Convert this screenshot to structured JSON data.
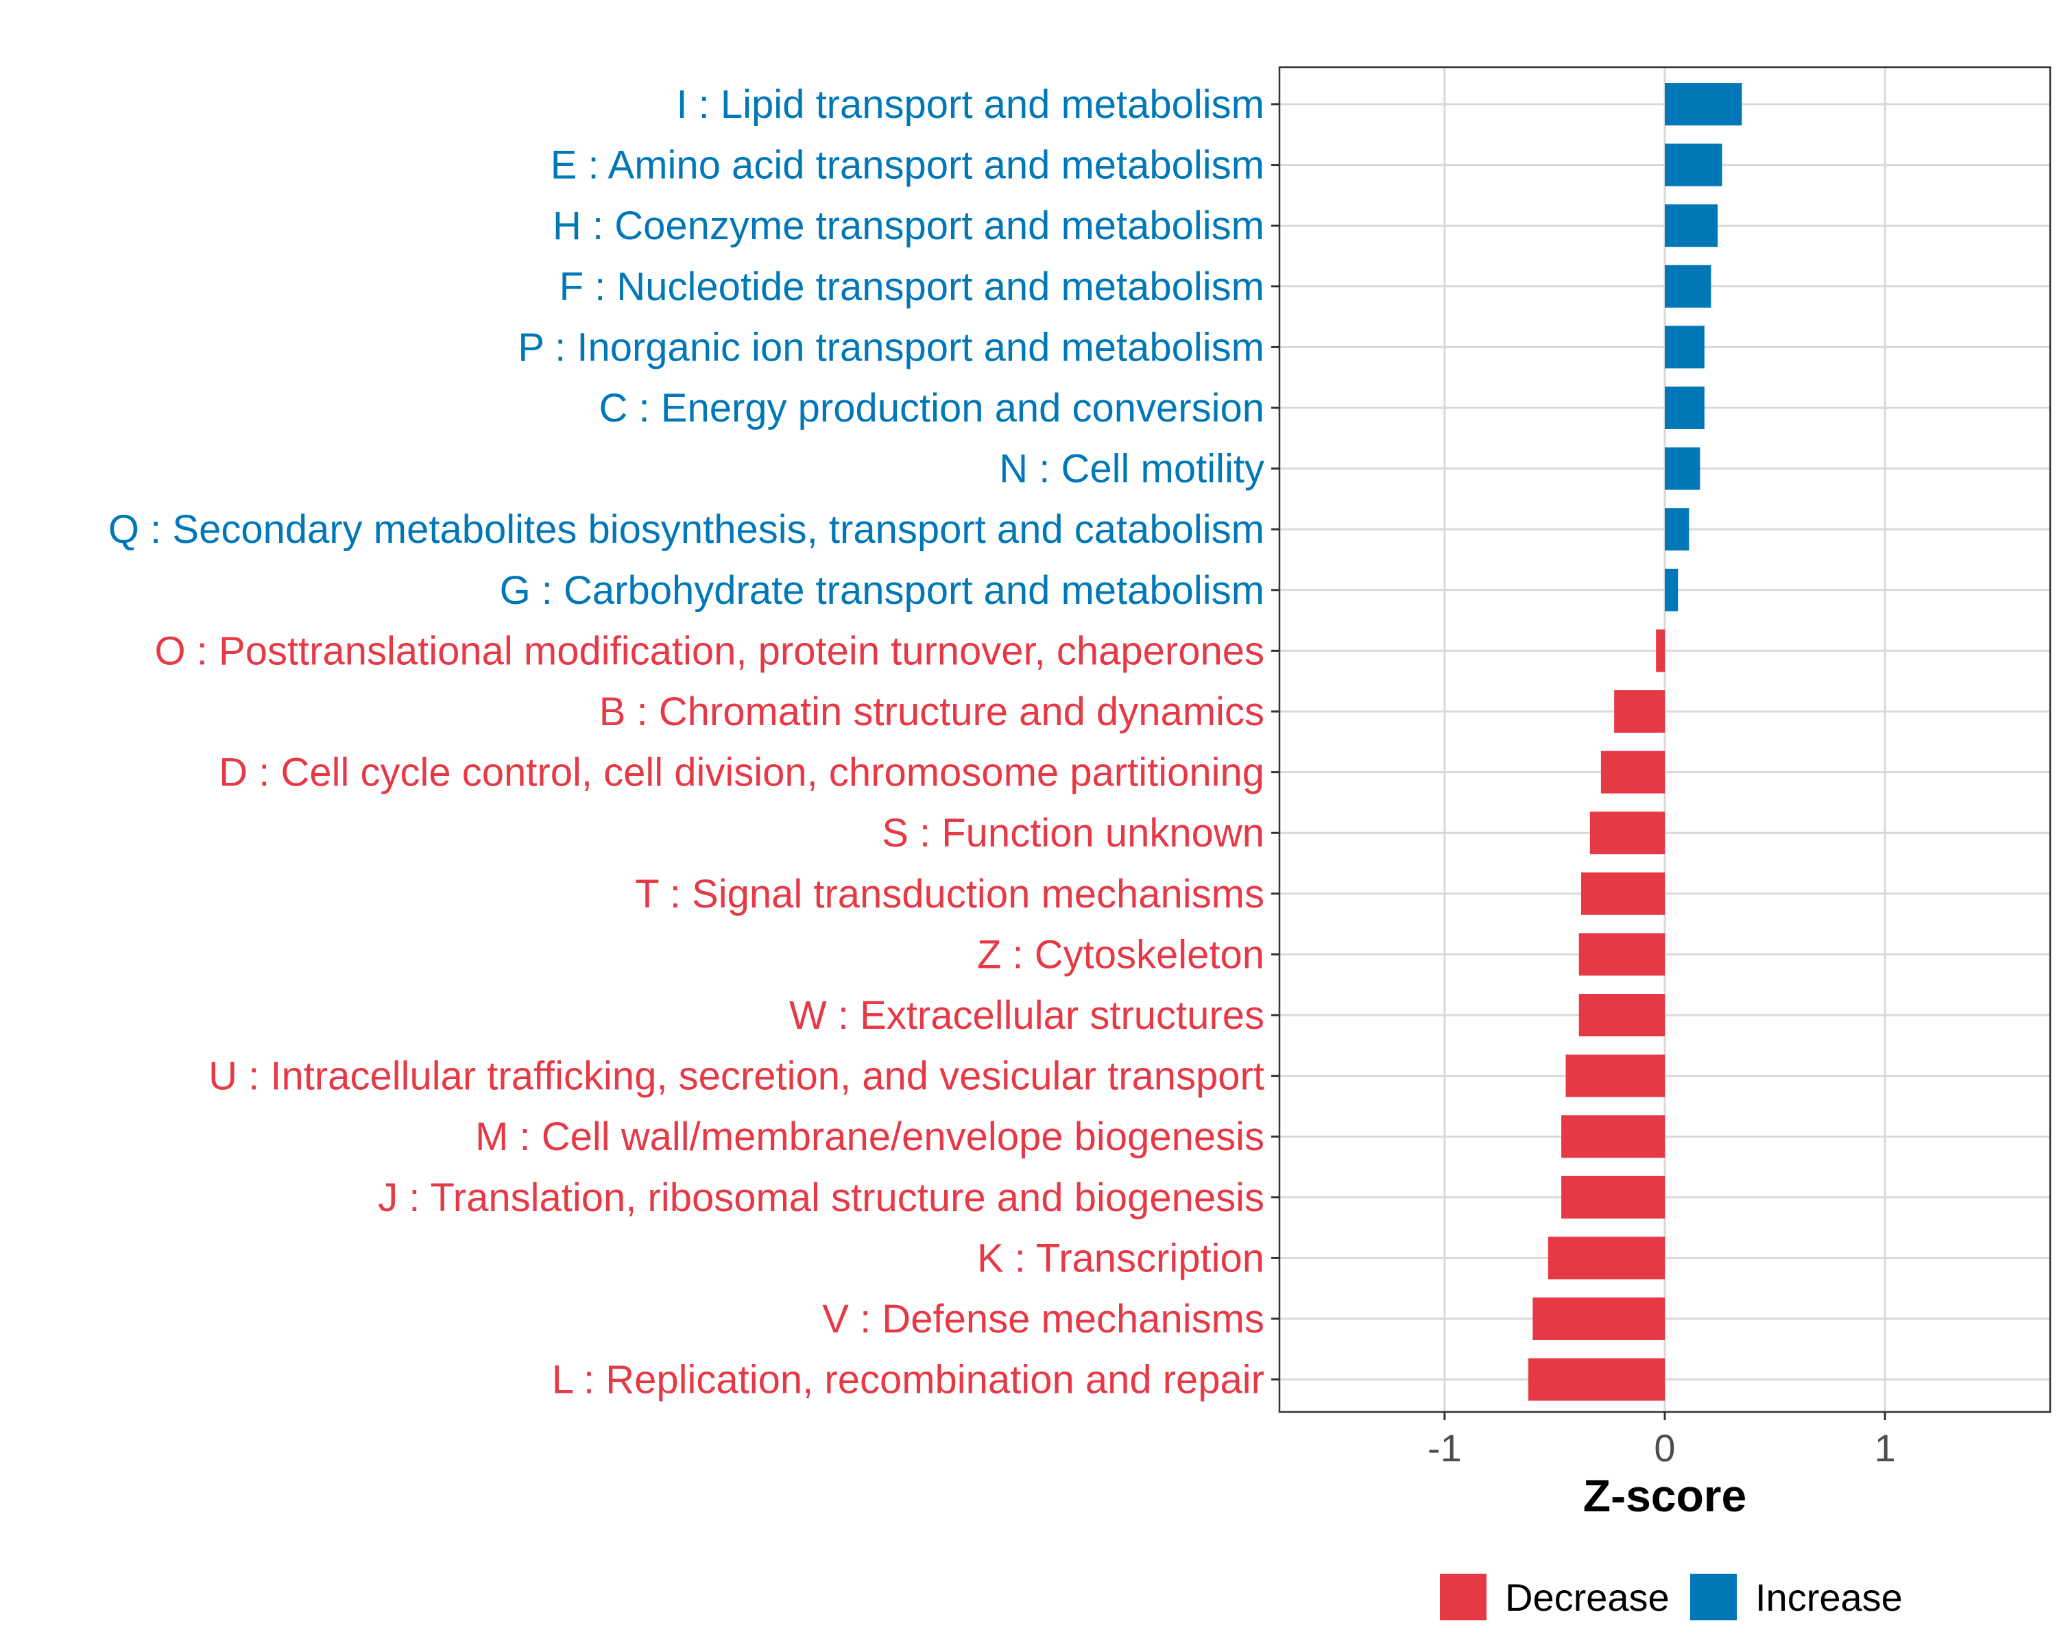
{
  "chart_data": {
    "type": "bar",
    "orientation": "horizontal",
    "xlabel": "Z-score",
    "ylabel": "",
    "xlim": [
      -1.75,
      1.75
    ],
    "xticks": [
      -1,
      0,
      1
    ],
    "xtick_labels": [
      "-1",
      "0",
      "1"
    ],
    "grid": true,
    "legend_position": "bottom",
    "legend": [
      {
        "name": "Decrease",
        "color": "#E63946"
      },
      {
        "name": "Increase",
        "color": "#0077B6"
      }
    ],
    "categories": [
      "I : Lipid transport and metabolism",
      "E : Amino acid transport and metabolism",
      "H : Coenzyme transport and metabolism",
      "F : Nucleotide transport and metabolism",
      "P : Inorganic ion transport and metabolism",
      "C : Energy production and conversion",
      "N : Cell motility",
      "Q : Secondary metabolites biosynthesis, transport and catabolism",
      "G : Carbohydrate transport and metabolism",
      "O : Posttranslational modification, protein turnover, chaperones",
      "B : Chromatin structure and dynamics",
      "D : Cell cycle control, cell division, chromosome partitioning",
      "S : Function unknown",
      "T : Signal transduction mechanisms",
      "Z : Cytoskeleton",
      "W : Extracellular structures",
      "U : Intracellular trafficking, secretion, and vesicular transport",
      "M : Cell wall/membrane/envelope biogenesis",
      "J : Translation, ribosomal structure and biogenesis",
      "K : Transcription",
      "V : Defense mechanisms",
      "L : Replication, recombination and repair"
    ],
    "values": [
      0.35,
      0.26,
      0.24,
      0.21,
      0.18,
      0.18,
      0.16,
      0.11,
      0.06,
      -0.04,
      -0.23,
      -0.29,
      -0.34,
      -0.38,
      -0.39,
      -0.39,
      -0.45,
      -0.47,
      -0.47,
      -0.53,
      -0.6,
      -0.62
    ],
    "groups": [
      "Increase",
      "Increase",
      "Increase",
      "Increase",
      "Increase",
      "Increase",
      "Increase",
      "Increase",
      "Increase",
      "Decrease",
      "Decrease",
      "Decrease",
      "Decrease",
      "Decrease",
      "Decrease",
      "Decrease",
      "Decrease",
      "Decrease",
      "Decrease",
      "Decrease",
      "Decrease",
      "Decrease"
    ]
  }
}
